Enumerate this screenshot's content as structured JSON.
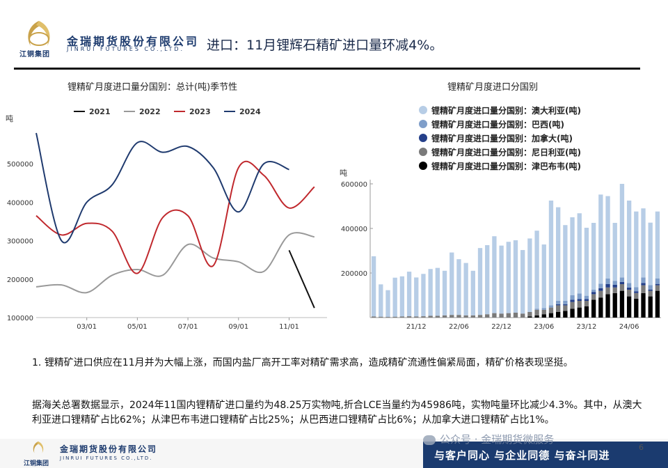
{
  "header": {
    "logo_sub": "江铜集团",
    "brand_cn": "金瑞期货股份有限公司",
    "brand_en": "JINRUI FUTURES CO.,LTD.",
    "title": "进口：11月锂辉石精矿进口量环减4%。"
  },
  "chart_data": [
    {
      "type": "line",
      "title": "锂精矿月度进口量分国别：总计(吨)季节性",
      "ylabel": "吨",
      "ylim": [
        100000,
        600000
      ],
      "yticks": [
        "500000",
        "400000",
        "300000",
        "200000",
        "100000"
      ],
      "xticks": [
        "03/01",
        "05/01",
        "07/01",
        "09/01",
        "11/01"
      ],
      "x": [
        "01/01",
        "02/01",
        "03/01",
        "04/01",
        "05/01",
        "06/01",
        "07/01",
        "08/01",
        "09/01",
        "10/01",
        "11/01",
        "12/01"
      ],
      "legend_position": "top",
      "series": [
        {
          "name": "2021",
          "color": "#111111",
          "values": [
            null,
            null,
            null,
            null,
            null,
            null,
            null,
            null,
            null,
            null,
            275000,
            125000
          ]
        },
        {
          "name": "2022",
          "color": "#999999",
          "values": [
            180000,
            185000,
            165000,
            210000,
            225000,
            210000,
            290000,
            255000,
            245000,
            220000,
            315000,
            310000
          ]
        },
        {
          "name": "2023",
          "color": "#c0282d",
          "values": [
            365000,
            315000,
            345000,
            325000,
            215000,
            360000,
            365000,
            235000,
            490000,
            470000,
            385000,
            440000
          ]
        },
        {
          "name": "2024",
          "color": "#1f3a6e",
          "values": [
            580000,
            300000,
            400000,
            445000,
            555000,
            530000,
            545000,
            490000,
            375000,
            500000,
            485000,
            null
          ]
        }
      ]
    },
    {
      "type": "bar",
      "stacked": true,
      "title": "锂精矿月度进口分国别",
      "ylabel": "吨",
      "ylim": [
        0,
        600000
      ],
      "yticks": [
        "600000",
        "400000",
        "200000"
      ],
      "xticks": [
        "21/12",
        "22/06",
        "22/12",
        "23/06",
        "23/12",
        "24/06"
      ],
      "legend_position": "top",
      "series": [
        {
          "name": "锂精矿月度进口量分国别：澳大利亚(吨)",
          "color": "#b7cde6",
          "values": [
            270000,
            145000,
            120000,
            175000,
            180000,
            200000,
            175000,
            190000,
            210000,
            215000,
            200000,
            280000,
            250000,
            235000,
            200000,
            300000,
            310000,
            345000,
            305000,
            320000,
            325000,
            285000,
            330000,
            350000,
            285000,
            470000,
            420000,
            340000,
            350000,
            360000,
            305000,
            300000,
            400000,
            370000,
            260000,
            420000,
            370000,
            340000,
            310000,
            280000,
            300000
          ]
        },
        {
          "name": "锂精矿月度进口量分国别：巴西(吨)",
          "color": "#7f9ec9",
          "values": [
            0,
            0,
            0,
            0,
            0,
            0,
            0,
            0,
            0,
            0,
            0,
            0,
            0,
            0,
            0,
            0,
            0,
            0,
            0,
            0,
            0,
            0,
            0,
            5000,
            8000,
            10000,
            15000,
            15000,
            20000,
            25000,
            15000,
            10000,
            20000,
            25000,
            18000,
            20000,
            20000,
            18000,
            25000,
            20000,
            25000
          ]
        },
        {
          "name": "锂精矿月度进口量分国别：加拿大(吨)",
          "color": "#25408a",
          "values": [
            0,
            0,
            0,
            0,
            0,
            0,
            0,
            0,
            0,
            0,
            0,
            0,
            0,
            0,
            0,
            0,
            0,
            0,
            0,
            0,
            0,
            0,
            0,
            0,
            0,
            0,
            5000,
            5000,
            10000,
            8000,
            8000,
            10000,
            12000,
            15000,
            12000,
            10000,
            10000,
            8000,
            10000,
            6000,
            6000
          ]
        },
        {
          "name": "锂精矿月度进口量分国别：尼日利亚(吨)",
          "color": "#7a7a7a",
          "values": [
            5000,
            4000,
            3000,
            4000,
            5000,
            6000,
            5000,
            6000,
            8000,
            8000,
            10000,
            12000,
            12000,
            10000,
            10000,
            12000,
            15000,
            20000,
            18000,
            20000,
            22000,
            18000,
            20000,
            25000,
            20000,
            25000,
            30000,
            25000,
            30000,
            30000,
            25000,
            25000,
            30000,
            30000,
            25000,
            30000,
            30000,
            25000,
            35000,
            25000,
            25000
          ]
        },
        {
          "name": "锂精矿月度进口量分国别：津巴布韦(吨)",
          "color": "#000000",
          "values": [
            0,
            0,
            0,
            0,
            0,
            0,
            0,
            0,
            0,
            0,
            0,
            0,
            0,
            0,
            0,
            0,
            0,
            0,
            0,
            0,
            0,
            0,
            5000,
            10000,
            15000,
            20000,
            25000,
            30000,
            40000,
            45000,
            50000,
            80000,
            90000,
            105000,
            110000,
            120000,
            95000,
            85000,
            110000,
            95000,
            120000
          ]
        }
      ]
    }
  ],
  "bullet": {
    "marker": "1.",
    "text": "锂精矿进口供应在11月并为大幅上涨，而国内盐厂高开工率对精矿需求高，造成精矿流通性偏紧局面，精矿价格表现坚挺。"
  },
  "paragraph": "据海关总署数据显示，2024年11国内锂精矿进口量约为48.25万实物吨,折合LCE当量约为45986吨，实物吨量环比减少4.3%。其中，从澳大利亚进口锂精矿占比62%；从津巴布韦进口锂精矿占比25%；从巴西进口锂精矿占比6%；从加拿大进口锂精矿占比1%。",
  "footer": {
    "logo_sub": "江铜集团",
    "brand_cn": "金瑞期货股份有限公司",
    "brand_en": "JINRUI FUTURES CO.,LTD.",
    "slogan": "与客户同心 与企业同德 与奋斗同进",
    "watermark": "公众号 · 金瑞期货微服务",
    "page_number": "6"
  },
  "colors": {
    "brand_navy": "#1b3b6f",
    "logo_gold": "#c9a24a"
  },
  "icons": [
    "company-logo-icon",
    "wechat-icon"
  ]
}
